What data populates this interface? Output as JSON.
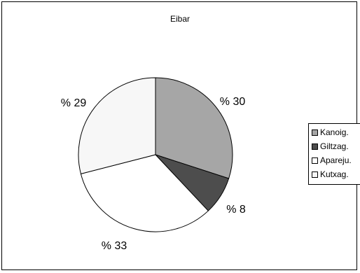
{
  "chart_data": {
    "type": "pie",
    "title": "Eibar",
    "categories": [
      "Kanoig.",
      "Giltzag.",
      "Apareju.",
      "Kutxag."
    ],
    "values": [
      30,
      8,
      33,
      29
    ],
    "labels": [
      "% 30",
      "% 8",
      "% 33",
      "% 29"
    ],
    "colors": [
      "#a6a6a6",
      "#4d4d4d",
      "#ffffff",
      "#f7f7f7"
    ],
    "legend_position": "right",
    "start": "12 o'clock",
    "direction": "clockwise"
  }
}
